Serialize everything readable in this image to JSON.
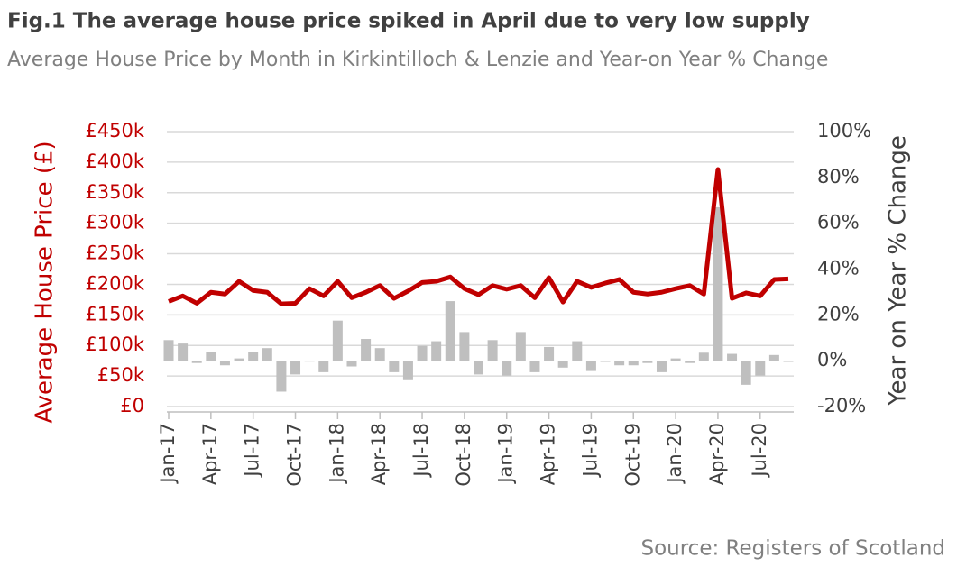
{
  "chart_data": {
    "type": "bar-line",
    "title": "Fig.1 The average house price spiked in April due to very low supply",
    "subtitle": "Average House Price by Month in Kirkintilloch & Lenzie and Year-on Year % Change",
    "y_label": "Average House Price (£)",
    "y2_label": "Year on Year % Change",
    "source": "Source: Registers of Scotland",
    "categories": [
      "Jan-17",
      null,
      null,
      "Apr-17",
      null,
      null,
      "Jul-17",
      null,
      null,
      "Oct-17",
      null,
      null,
      "Jan-18",
      null,
      null,
      "Apr-18",
      null,
      null,
      "Jul-18",
      null,
      null,
      "Oct-18",
      null,
      null,
      "Jan-19",
      null,
      null,
      "Apr-19",
      null,
      null,
      "Jul-19",
      null,
      null,
      "Oct-19",
      null,
      null,
      "Jan-20",
      null,
      null,
      "Apr-20",
      null,
      null,
      "Jul-20",
      null,
      null
    ],
    "series": [
      {
        "type": "line",
        "color": "#c00000",
        "values": [
          172000,
          181000,
          169000,
          187000,
          184000,
          205000,
          190000,
          187000,
          168000,
          169000,
          193000,
          181000,
          205000,
          178000,
          187000,
          198000,
          177000,
          189000,
          203000,
          205000,
          212000,
          193000,
          183000,
          198000,
          192000,
          198000,
          178000,
          211000,
          171000,
          205000,
          195000,
          202000,
          208000,
          187000,
          184000,
          187000,
          193000,
          198000,
          184000,
          388000,
          177000,
          186000,
          181000,
          208000,
          209000
        ]
      },
      {
        "type": "bar",
        "axis": "y2",
        "color": "#bfbfbf",
        "values": [
          9,
          7.5,
          -1,
          4,
          -2,
          1,
          4,
          5.5,
          -13.5,
          -6,
          0,
          -5,
          17.5,
          -2.5,
          9.5,
          5.5,
          -5,
          -8.5,
          6.5,
          8.5,
          26,
          12.5,
          -6,
          9,
          -6.5,
          12.5,
          -5,
          6,
          -3,
          8.5,
          -4.5,
          -0.5,
          -2,
          -2,
          -1,
          -5,
          1,
          -1,
          3.5,
          67,
          3,
          -10.5,
          -6.5,
          2.5,
          -0.5
        ]
      }
    ],
    "ylim": [
      0,
      450000
    ],
    "yticks": [
      {
        "value": 0,
        "label": "£0"
      },
      {
        "value": 50000,
        "label": "£50k"
      },
      {
        "value": 100000,
        "label": "£100k"
      },
      {
        "value": 150000,
        "label": "£150k"
      },
      {
        "value": 200000,
        "label": "£200k"
      },
      {
        "value": 250000,
        "label": "£250k"
      },
      {
        "value": 300000,
        "label": "£300k"
      },
      {
        "value": 350000,
        "label": "£350k"
      },
      {
        "value": 400000,
        "label": "£400k"
      },
      {
        "value": 450000,
        "label": "£450k"
      }
    ],
    "y2lim": [
      -20,
      100
    ],
    "y2ticks": [
      {
        "value": -20,
        "label": "-20%"
      },
      {
        "value": 0,
        "label": "0%"
      },
      {
        "value": 20,
        "label": "20%"
      },
      {
        "value": 40,
        "label": "40%"
      },
      {
        "value": 60,
        "label": "60%"
      },
      {
        "value": 80,
        "label": "80%"
      },
      {
        "value": 100,
        "label": "100%"
      }
    ],
    "grid": true
  }
}
